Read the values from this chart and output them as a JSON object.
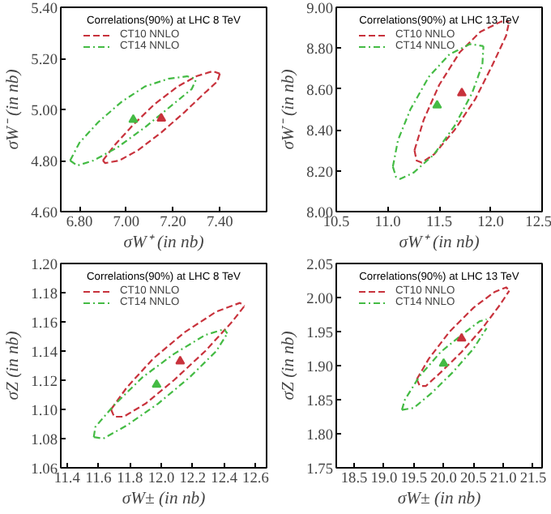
{
  "chart_data": [
    {
      "type": "line",
      "title": "Correlations(90%) at LHC 8 TeV",
      "xlabel": "σW⁺ (in nb)",
      "ylabel": "σW⁻ (in nb)",
      "xlim": [
        6.72,
        7.6
      ],
      "ylim": [
        4.6,
        5.4
      ],
      "xticks": [
        {
          "value": 6.8,
          "label": "6.80"
        },
        {
          "value": 7.0,
          "label": "7.00"
        },
        {
          "value": 7.2,
          "label": "7.20"
        },
        {
          "value": 7.4,
          "label": "7.40"
        }
      ],
      "yticks": [
        {
          "value": 4.6,
          "label": "4.60"
        },
        {
          "value": 4.8,
          "label": "4.80"
        },
        {
          "value": 5.0,
          "label": "5.00"
        },
        {
          "value": 5.2,
          "label": "5.20"
        },
        {
          "value": 5.4,
          "label": "5.40"
        }
      ],
      "grid": false,
      "legend": "top left",
      "series": [
        {
          "name": "CT10 NNLO",
          "color": "#c8323c",
          "line_style": "dashed",
          "x": [
            6.9,
            6.95,
            7.03,
            7.12,
            7.22,
            7.3,
            7.37,
            7.4
          ],
          "values": [
            4.8,
            4.86,
            4.94,
            5.02,
            5.09,
            5.13,
            5.15,
            5.14
          ]
        },
        {
          "color": "#c8323c",
          "line_style": "dashed",
          "x": [
            6.9,
            6.91,
            6.97,
            7.05,
            7.15,
            7.25,
            7.33,
            7.39,
            7.4
          ],
          "values": [
            4.8,
            4.79,
            4.8,
            4.84,
            4.91,
            4.99,
            5.06,
            5.11,
            5.14
          ]
        },
        {
          "name": "CT14 NNLO",
          "color": "#44bb44",
          "line_style": "dotted",
          "x": [
            6.76,
            6.8,
            6.88,
            6.98,
            7.08,
            7.18,
            7.26,
            7.3
          ],
          "values": [
            4.8,
            4.87,
            4.95,
            5.03,
            5.09,
            5.12,
            5.13,
            5.12
          ]
        },
        {
          "color": "#44bb44",
          "line_style": "dotted",
          "x": [
            6.76,
            6.79,
            6.86,
            6.96,
            7.08,
            7.2,
            7.28,
            7.3
          ],
          "values": [
            4.8,
            4.78,
            4.8,
            4.85,
            4.93,
            5.02,
            5.08,
            5.12
          ]
        },
        {
          "type": "scatter",
          "marker": "triangle",
          "color": "#c8323c",
          "x": [
            7.15
          ],
          "values": [
            4.965
          ]
        },
        {
          "type": "scatter",
          "marker": "triangle",
          "color": "#44bb44",
          "x": [
            7.03
          ],
          "values": [
            4.96
          ]
        }
      ]
    },
    {
      "type": "line",
      "title": "Correlations(90%) at LHC 13 TeV",
      "xlabel": "σW⁺ (in nb)",
      "ylabel": "σW⁻ (in nb)",
      "xlim": [
        10.5,
        12.5
      ],
      "ylim": [
        8.0,
        9.0
      ],
      "xticks": [
        10.5,
        {
          "value": 11,
          "label": "11.0"
        },
        11.5,
        {
          "value": 12,
          "label": "12.0"
        },
        12.5
      ],
      "yticks": [
        {
          "value": 8.0,
          "label": "8.00"
        },
        {
          "value": 8.2,
          "label": "8.20"
        },
        {
          "value": 8.4,
          "label": "8.40"
        },
        {
          "value": 8.6,
          "label": "8.60"
        },
        {
          "value": 8.8,
          "label": "8.80"
        },
        {
          "value": 9.0,
          "label": "9.00"
        }
      ],
      "grid": false,
      "legend": "top left",
      "series": [
        {
          "name": "CT10 NNLO",
          "color": "#c8323c",
          "line_style": "dashed",
          "x": [
            11.26,
            11.35,
            11.5,
            11.7,
            11.9,
            12.1,
            12.18
          ],
          "values": [
            8.3,
            8.45,
            8.62,
            8.78,
            8.88,
            8.93,
            8.93
          ]
        },
        {
          "color": "#c8323c",
          "line_style": "dashed",
          "x": [
            11.26,
            11.28,
            11.33,
            11.45,
            11.65,
            11.85,
            12.02,
            12.15,
            12.18
          ],
          "values": [
            8.3,
            8.25,
            8.24,
            8.28,
            8.4,
            8.55,
            8.72,
            8.86,
            8.93
          ]
        },
        {
          "name": "CT14 NNLO",
          "color": "#44bb44",
          "line_style": "dotted",
          "x": [
            11.05,
            11.1,
            11.22,
            11.4,
            11.6,
            11.8,
            11.93
          ],
          "values": [
            8.22,
            8.35,
            8.5,
            8.66,
            8.77,
            8.82,
            8.81
          ]
        },
        {
          "color": "#44bb44",
          "line_style": "dotted",
          "x": [
            11.05,
            11.08,
            11.12,
            11.25,
            11.45,
            11.65,
            11.82,
            11.92,
            11.93
          ],
          "values": [
            8.22,
            8.17,
            8.16,
            8.19,
            8.28,
            8.42,
            8.58,
            8.72,
            8.81
          ]
        },
        {
          "type": "scatter",
          "marker": "triangle",
          "color": "#c8323c",
          "x": [
            11.72
          ],
          "values": [
            8.58
          ]
        },
        {
          "type": "scatter",
          "marker": "triangle",
          "color": "#44bb44",
          "x": [
            11.48
          ],
          "values": [
            8.52
          ]
        }
      ]
    },
    {
      "type": "line",
      "title": "Correlations(90%) at LHC 8 TeV",
      "xlabel": "σW± (in nb)",
      "ylabel": "σZ (in nb)",
      "xlim": [
        11.36,
        12.67
      ],
      "ylim": [
        1.06,
        1.2
      ],
      "xticks": [
        11.4,
        11.6,
        11.8,
        {
          "value": 12,
          "label": "12.0"
        },
        12.2,
        12.4,
        12.6
      ],
      "yticks": [
        1.06,
        1.08,
        {
          "value": 1.1,
          "label": "1.10"
        },
        1.12,
        1.14,
        1.16,
        1.18,
        {
          "value": 1.2,
          "label": "1.20"
        }
      ],
      "grid": false,
      "legend": "top left",
      "series": [
        {
          "name": "CT10 NNLO",
          "color": "#c8323c",
          "line_style": "dashed",
          "x": [
            11.68,
            11.78,
            11.95,
            12.15,
            12.35,
            12.5,
            12.53
          ],
          "values": [
            1.1,
            1.115,
            1.135,
            1.153,
            1.167,
            1.173,
            1.171
          ]
        },
        {
          "color": "#c8323c",
          "line_style": "dashed",
          "x": [
            11.68,
            11.7,
            11.76,
            11.9,
            12.08,
            12.28,
            12.45,
            12.53
          ],
          "values": [
            1.1,
            1.095,
            1.095,
            1.104,
            1.12,
            1.14,
            1.16,
            1.171
          ]
        },
        {
          "name": "CT14 NNLO",
          "color": "#44bb44",
          "line_style": "dotted",
          "x": [
            11.57,
            11.58,
            11.7,
            11.88,
            12.08,
            12.28,
            12.4,
            12.42
          ],
          "values": [
            1.081,
            1.088,
            1.103,
            1.122,
            1.138,
            1.151,
            1.155,
            1.152
          ]
        },
        {
          "color": "#44bb44",
          "line_style": "dotted",
          "x": [
            11.57,
            11.63,
            11.78,
            11.98,
            12.18,
            12.35,
            12.42
          ],
          "values": [
            1.081,
            1.08,
            1.089,
            1.104,
            1.122,
            1.14,
            1.152
          ]
        },
        {
          "type": "scatter",
          "marker": "triangle",
          "color": "#c8323c",
          "x": [
            12.12
          ],
          "values": [
            1.133
          ]
        },
        {
          "type": "scatter",
          "marker": "triangle",
          "color": "#44bb44",
          "x": [
            11.97
          ],
          "values": [
            1.117
          ]
        }
      ]
    },
    {
      "type": "line",
      "title": "Correlations(90%) at LHC 13 TeV",
      "xlabel": "σW± (in nb)",
      "ylabel": "σZ (in nb)",
      "xlim": [
        18.2,
        21.65
      ],
      "ylim": [
        1.75,
        2.05
      ],
      "xticks": [
        18.5,
        {
          "value": 19,
          "label": "19.0"
        },
        19.5,
        {
          "value": 20,
          "label": "20.0"
        },
        20.5,
        {
          "value": 21,
          "label": "21.0"
        },
        21.5
      ],
      "yticks": [
        1.75,
        {
          "value": 1.8,
          "label": "1.80"
        },
        1.85,
        {
          "value": 1.9,
          "label": "1.90"
        },
        1.95,
        {
          "value": 2.0,
          "label": "2.00"
        },
        2.05
      ],
      "grid": false,
      "legend": "top left",
      "series": [
        {
          "name": "CT10 NNLO",
          "color": "#c8323c",
          "line_style": "dashed",
          "x": [
            19.55,
            19.75,
            20.1,
            20.5,
            20.85,
            21.05,
            21.1
          ],
          "values": [
            1.88,
            1.91,
            1.95,
            1.985,
            2.008,
            2.015,
            2.01
          ]
        },
        {
          "color": "#c8323c",
          "line_style": "dashed",
          "x": [
            19.55,
            19.6,
            19.7,
            19.95,
            20.3,
            20.65,
            20.95,
            21.1
          ],
          "values": [
            1.88,
            1.87,
            1.87,
            1.89,
            1.92,
            1.955,
            1.99,
            2.01
          ]
        },
        {
          "name": "CT14 NNLO",
          "color": "#44bb44",
          "line_style": "dotted",
          "x": [
            19.3,
            19.35,
            19.6,
            19.95,
            20.3,
            20.6,
            20.72
          ],
          "values": [
            1.835,
            1.85,
            1.885,
            1.92,
            1.945,
            1.965,
            1.968
          ]
        },
        {
          "color": "#44bb44",
          "line_style": "dotted",
          "x": [
            19.3,
            19.5,
            19.8,
            20.15,
            20.5,
            20.72
          ],
          "values": [
            1.835,
            1.838,
            1.86,
            1.89,
            1.925,
            1.955
          ]
        },
        {
          "type": "scatter",
          "marker": "triangle",
          "color": "#c8323c",
          "x": [
            20.3
          ],
          "values": [
            1.94
          ]
        },
        {
          "type": "scatter",
          "marker": "triangle",
          "color": "#44bb44",
          "x": [
            20.0
          ],
          "values": [
            1.903
          ]
        }
      ]
    }
  ]
}
